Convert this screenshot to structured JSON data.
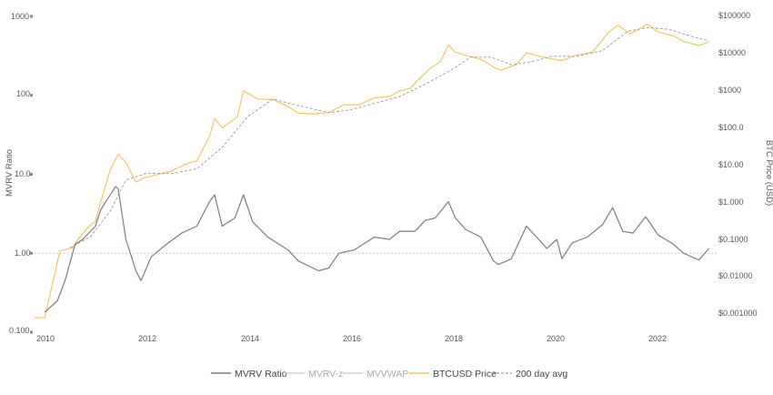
{
  "chart_data": {
    "type": "line",
    "xlabel": "",
    "ylabel_left": "MVRV Ratio",
    "ylabel_right": "BTC Price (USD)",
    "left_axis_scale": "log",
    "right_axis_scale": "log",
    "ylim_left": [
      0.1,
      1000
    ],
    "ylim_right": [
      0.001,
      100000
    ],
    "grid": false,
    "reference_line": {
      "axis": "left",
      "value": 1.0,
      "style": "dotted"
    },
    "x_tick_labels": [
      "2010",
      "2012",
      "2014",
      "2016",
      "2018",
      "2020",
      "2022"
    ],
    "left_tick_labels": [
      "0.100",
      "1.00",
      "10.0",
      "100",
      "1000"
    ],
    "right_tick_labels": [
      "$0.001000",
      "$0.01000",
      "$0.1000",
      "$1.000",
      "$10.00",
      "$100.0",
      "$1000",
      "$10000",
      "$100000"
    ],
    "legend_position": "bottom",
    "legend": [
      {
        "name": "MVRV Ratio",
        "style": "solid",
        "color": "#857a78"
      },
      {
        "name": "MVRV-z",
        "style": "solid",
        "color": "#d2d2d2"
      },
      {
        "name": "MVVWAP",
        "style": "solid",
        "color": "#d2d2d2"
      },
      {
        "name": "BTCUSD Price",
        "style": "solid",
        "color": "#f4c46a"
      },
      {
        "name": "200 day avg",
        "style": "dashed",
        "color": "#999999"
      }
    ],
    "series": [
      {
        "name": "BTCUSD Price",
        "axis": "right",
        "x": [
          2009.8,
          2010.0,
          2010.3,
          2010.55,
          2010.65,
          2010.9,
          2011.0,
          2011.1,
          2011.3,
          2011.45,
          2011.6,
          2011.8,
          2011.95,
          2012.2,
          2012.5,
          2012.8,
          2013.0,
          2013.25,
          2013.35,
          2013.5,
          2013.8,
          2013.92,
          2014.2,
          2014.5,
          2014.8,
          2015.0,
          2015.3,
          2015.6,
          2015.9,
          2016.2,
          2016.5,
          2016.8,
          2017.0,
          2017.2,
          2017.4,
          2017.6,
          2017.8,
          2017.96,
          2018.1,
          2018.3,
          2018.6,
          2018.9,
          2019.0,
          2019.3,
          2019.5,
          2019.8,
          2020.0,
          2020.2,
          2020.5,
          2020.8,
          2020.95,
          2021.1,
          2021.3,
          2021.55,
          2021.75,
          2021.88,
          2022.1,
          2022.4,
          2022.6,
          2022.9,
          2023.1
        ],
        "values": [
          0.0008,
          0.0008,
          0.05,
          0.06,
          0.1,
          0.25,
          0.3,
          1.0,
          8,
          20,
          12,
          3.5,
          4.5,
          5.5,
          7,
          11,
          13,
          60,
          180,
          100,
          200,
          1000,
          600,
          580,
          380,
          250,
          240,
          260,
          420,
          420,
          650,
          700,
          1000,
          1150,
          2200,
          4000,
          6000,
          17000,
          11000,
          9000,
          7000,
          4000,
          3600,
          5000,
          10500,
          8200,
          7200,
          6500,
          9200,
          11000,
          19000,
          35000,
          58000,
          34000,
          48000,
          62000,
          38000,
          30000,
          21000,
          16500,
          20500
        ]
      },
      {
        "name": "200 day avg",
        "axis": "right",
        "x": [
          2010.5,
          2010.9,
          2011.3,
          2011.6,
          2012.0,
          2012.5,
          2013.0,
          2013.5,
          2014.0,
          2014.5,
          2015.0,
          2015.6,
          2016.0,
          2016.6,
          2017.0,
          2017.5,
          2018.0,
          2018.4,
          2018.8,
          2019.2,
          2019.6,
          2020.0,
          2020.5,
          2021.0,
          2021.5,
          2021.9,
          2022.3,
          2022.8,
          2023.1
        ],
        "values": [
          0.06,
          0.12,
          0.6,
          4,
          6,
          6,
          8,
          30,
          200,
          600,
          400,
          260,
          300,
          500,
          700,
          1500,
          3500,
          8000,
          8000,
          5000,
          6000,
          8500,
          8500,
          12000,
          40000,
          50000,
          45000,
          28000,
          22000
        ]
      },
      {
        "name": "MVRV Ratio",
        "axis": "left",
        "x": [
          2010.0,
          2010.25,
          2010.4,
          2010.6,
          2010.75,
          2011.0,
          2011.1,
          2011.25,
          2011.4,
          2011.45,
          2011.5,
          2011.6,
          2011.8,
          2011.9,
          2012.1,
          2012.4,
          2012.7,
          2013.0,
          2013.25,
          2013.35,
          2013.5,
          2013.75,
          2013.92,
          2014.1,
          2014.4,
          2014.8,
          2015.0,
          2015.4,
          2015.6,
          2015.8,
          2016.1,
          2016.5,
          2016.8,
          2017.0,
          2017.3,
          2017.5,
          2017.7,
          2017.96,
          2018.1,
          2018.3,
          2018.6,
          2018.85,
          2018.95,
          2019.2,
          2019.5,
          2019.7,
          2019.9,
          2020.1,
          2020.2,
          2020.4,
          2020.7,
          2021.0,
          2021.2,
          2021.4,
          2021.6,
          2021.85,
          2022.1,
          2022.4,
          2022.6,
          2022.9,
          2023.1
        ],
        "values": [
          0.18,
          0.25,
          0.45,
          1.3,
          1.5,
          2.2,
          3.5,
          5,
          7,
          6.5,
          4,
          1.5,
          0.6,
          0.45,
          0.9,
          1.3,
          1.8,
          2.2,
          4.5,
          5.5,
          2.2,
          2.8,
          5.5,
          2.5,
          1.6,
          1.1,
          0.8,
          0.6,
          0.65,
          1.0,
          1.1,
          1.6,
          1.5,
          1.9,
          1.9,
          2.6,
          2.8,
          4.5,
          2.8,
          2.0,
          1.6,
          0.8,
          0.72,
          0.85,
          2.2,
          1.6,
          1.15,
          1.5,
          0.85,
          1.35,
          1.6,
          2.3,
          3.8,
          1.9,
          1.8,
          2.9,
          1.7,
          1.3,
          1.0,
          0.82,
          1.15
        ]
      }
    ]
  }
}
